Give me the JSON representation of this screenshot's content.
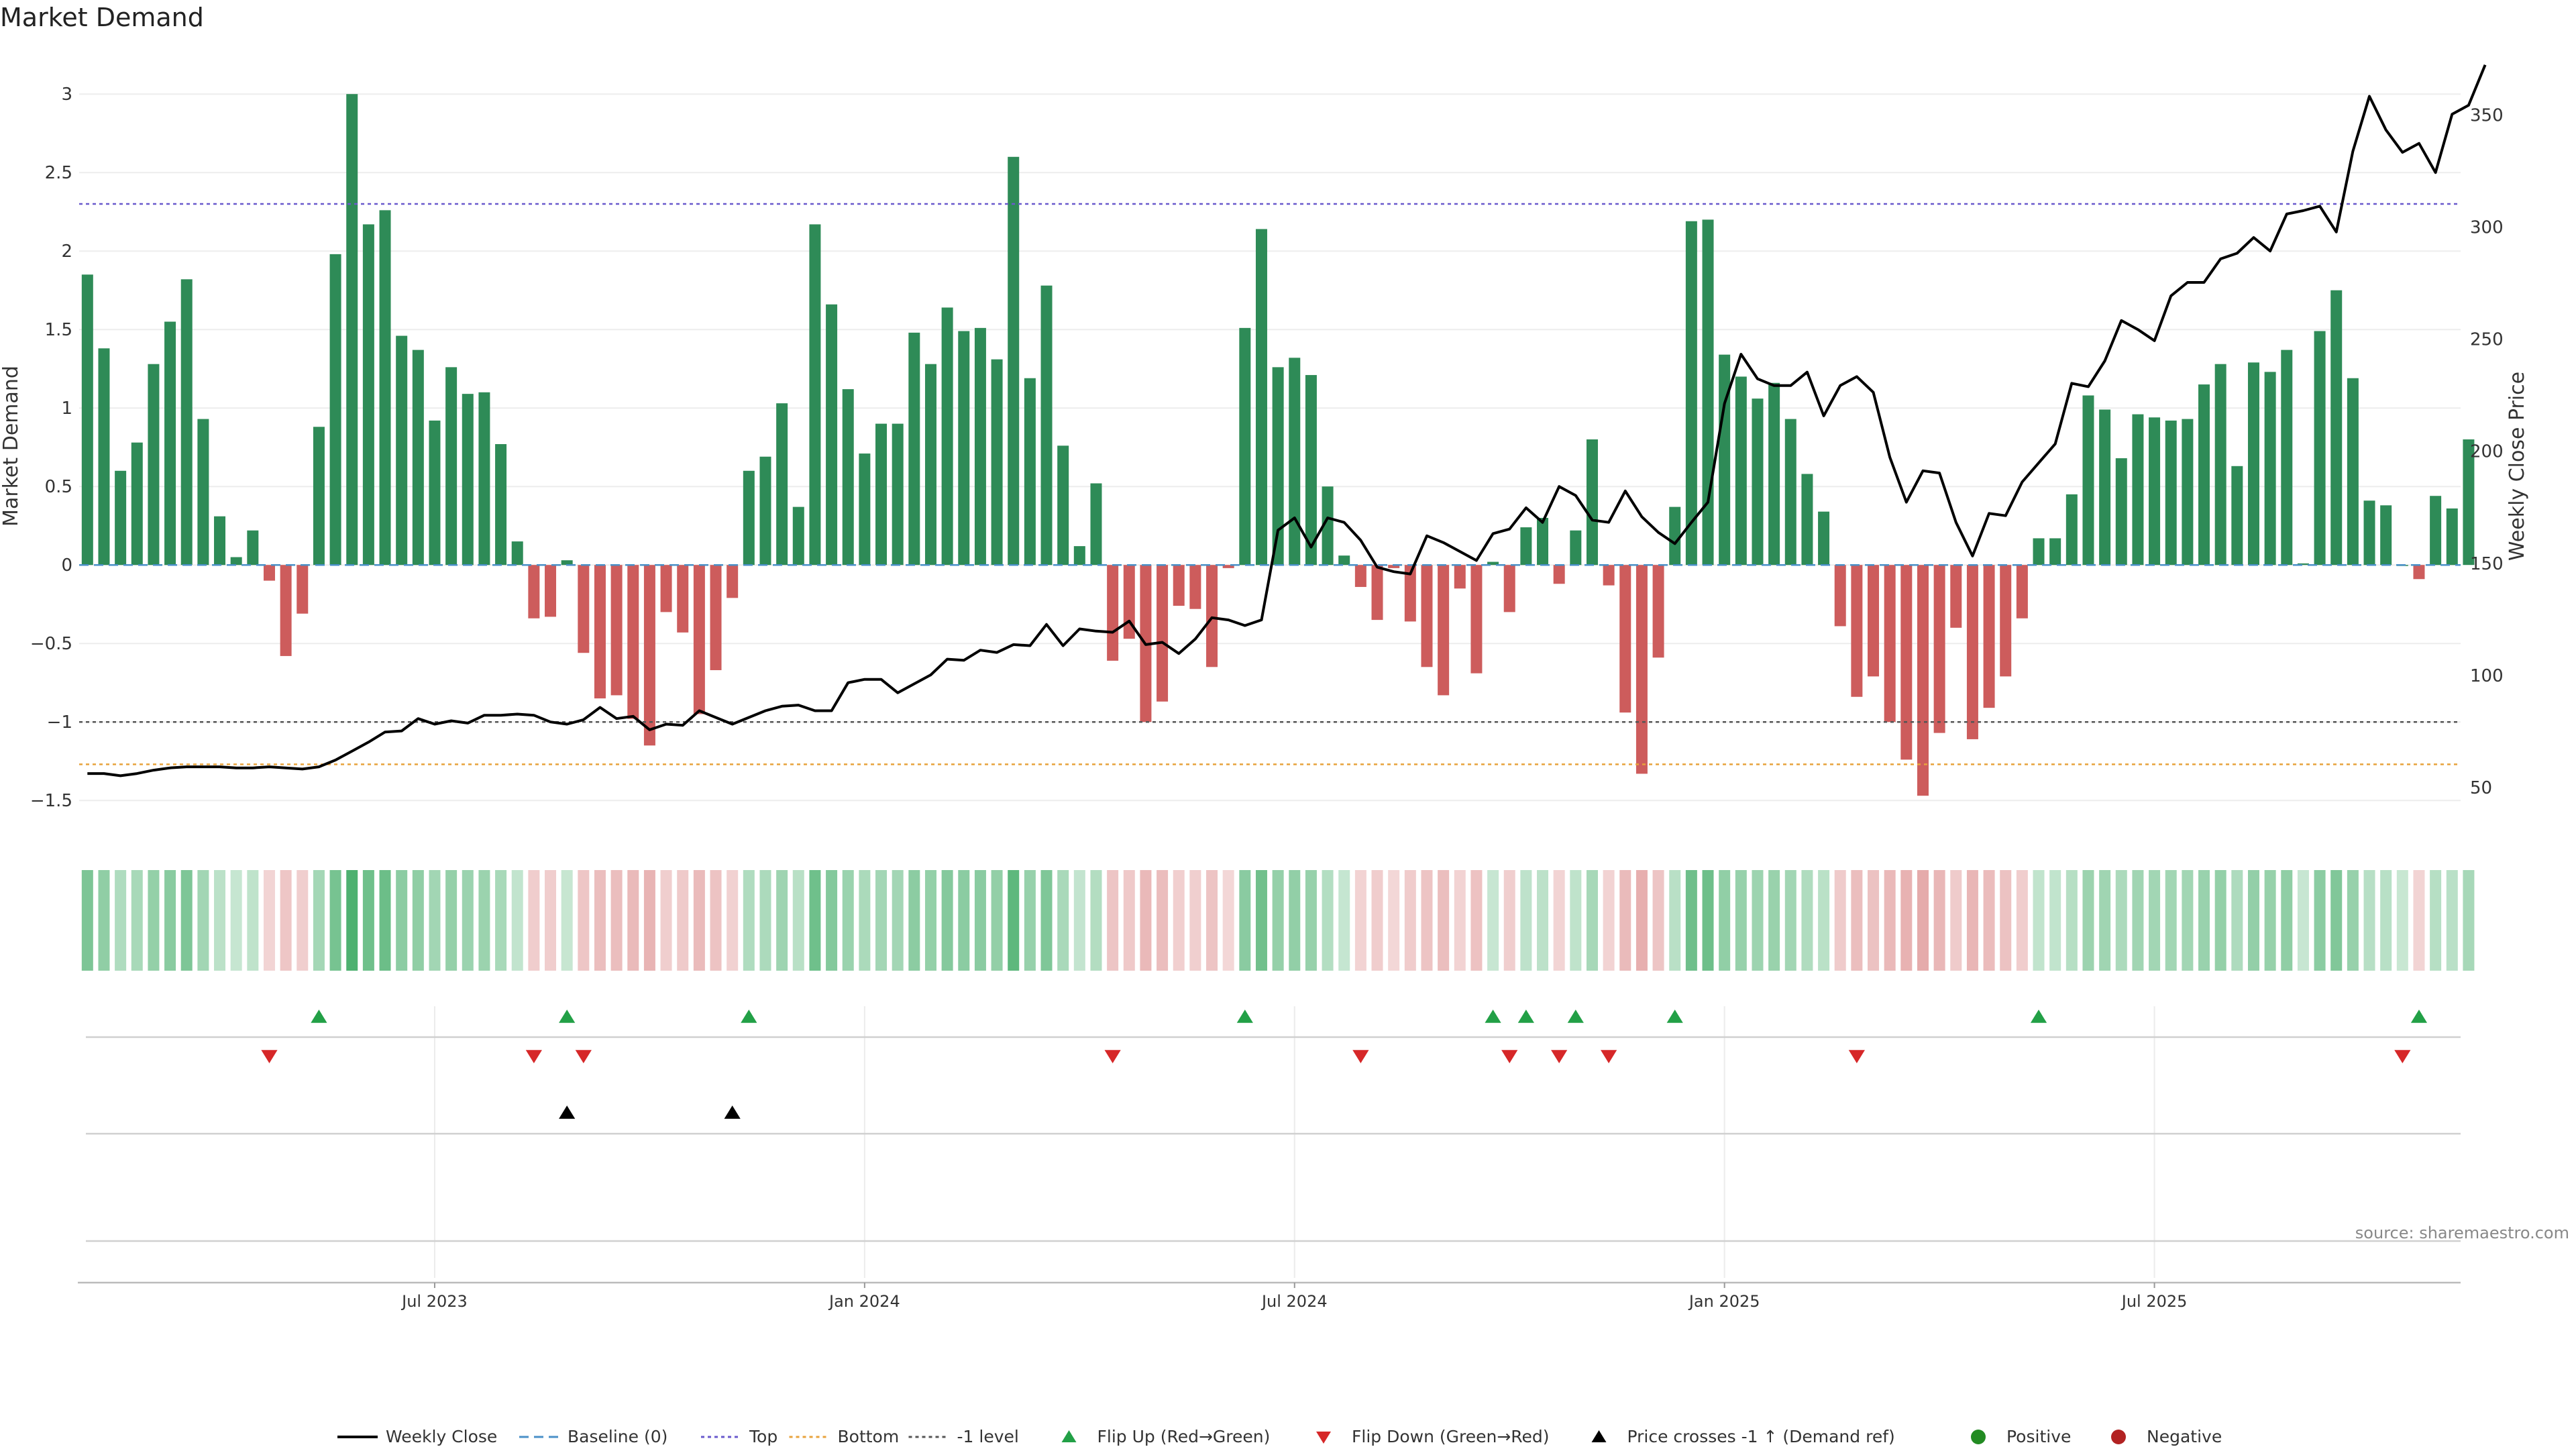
{
  "title": "Market Demand",
  "source": "source: sharemaestro.com",
  "chart_data": {
    "type": "bar",
    "weeks": 144,
    "ylabel_left": "Market Demand",
    "ylabel_right": "Weekly Close Price",
    "ylim_left": [
      -1.7,
      3.3
    ],
    "ylim_right": [
      30,
      380
    ],
    "left_ticks": [
      "3",
      "2.5",
      "2",
      "1.5",
      "1",
      "0.5",
      "0",
      "−0.5",
      "−1",
      "−1.5"
    ],
    "left_tick_values": [
      3,
      2.5,
      2,
      1.5,
      1,
      0.5,
      0,
      -0.5,
      -1,
      -1.5
    ],
    "right_ticks": [
      "350",
      "300",
      "250",
      "200",
      "150",
      "100",
      "50"
    ],
    "right_tick_values": [
      350,
      300,
      250,
      200,
      150,
      100,
      50
    ],
    "x_ticks": [
      "Jul 2023",
      "Jan 2024",
      "Jul 2024",
      "Jan 2025",
      "Jul 2025"
    ],
    "x_tick_weeks": [
      21.5,
      47.5,
      73.5,
      99.5,
      125.5
    ],
    "levels": {
      "top": 2.3,
      "bottom": -1.27,
      "minus_one": -1,
      "baseline": 0
    },
    "colors": {
      "positive": "#2e8b57",
      "negative": "#cd5c5c",
      "close": "#000000",
      "top": "#6a5acd",
      "bottom": "#e8a33d",
      "minus_one": "#555555",
      "baseline": "#4a90c8",
      "flip_up": "#22a046",
      "flip_down": "#d62728",
      "cross": "#000000"
    },
    "series": [
      {
        "name": "Market Demand",
        "values": [
          1.85,
          1.38,
          0.6,
          0.78,
          1.28,
          1.55,
          1.82,
          0.93,
          0.31,
          0.05,
          0.22,
          -0.1,
          -0.58,
          -0.31,
          0.88,
          1.98,
          3.0,
          2.17,
          2.26,
          1.46,
          1.37,
          0.92,
          1.26,
          1.09,
          1.1,
          0.77,
          0.15,
          -0.34,
          -0.33,
          0.03,
          -0.56,
          -0.85,
          -0.83,
          -0.98,
          -1.15,
          -0.3,
          -0.43,
          -0.95,
          -0.67,
          -0.21,
          0.6,
          0.69,
          1.03,
          0.37,
          2.17,
          1.66,
          1.12,
          0.71,
          0.9,
          0.9,
          1.48,
          1.28,
          1.64,
          1.49,
          1.51,
          1.31,
          2.6,
          1.19,
          1.78,
          0.76,
          0.12,
          0.52,
          -0.61,
          -0.47,
          -1.0,
          -0.87,
          -0.26,
          -0.28,
          -0.65,
          -0.02,
          1.51,
          2.14,
          1.26,
          1.32,
          1.21,
          0.5,
          0.06,
          -0.14,
          -0.35,
          -0.02,
          -0.36,
          -0.65,
          -0.83,
          -0.15,
          -0.69,
          0.02,
          -0.3,
          0.24,
          0.3,
          -0.12,
          0.22,
          0.8,
          -0.13,
          -0.94,
          -1.33,
          -0.59,
          0.37,
          2.19,
          2.2,
          1.34,
          1.2,
          1.06,
          1.16,
          0.93,
          0.58,
          0.34,
          -0.39,
          -0.84,
          -0.71,
          -1.0,
          -1.24,
          -1.47,
          -1.07,
          -0.4,
          -1.11,
          -0.91,
          -0.71,
          -0.34,
          0.17,
          0.17,
          0.45,
          1.08,
          0.99,
          0.68,
          0.96,
          0.94,
          0.92,
          0.93,
          1.15,
          1.28,
          0.63,
          1.29,
          1.23,
          1.37,
          0.01,
          1.49,
          1.75,
          1.19,
          0.41,
          0.38,
          0.0,
          -0.09,
          0.44,
          0.36,
          0.8
        ]
      },
      {
        "name": "Weekly Close",
        "values": [
          56,
          56,
          55,
          56,
          57.5,
          58.5,
          59,
          59,
          59,
          58.5,
          58.5,
          59,
          58.5,
          58,
          59,
          62,
          66,
          70,
          74.5,
          75,
          80.5,
          78,
          79.5,
          78.5,
          82,
          82,
          82.5,
          82,
          79,
          78,
          80,
          85.5,
          80.5,
          81.5,
          75.5,
          78,
          77.5,
          84,
          81,
          78,
          81,
          84,
          86,
          86.5,
          84,
          84,
          96.5,
          98,
          98,
          92,
          96,
          100,
          107,
          106.5,
          111,
          110,
          113.5,
          113,
          122.5,
          113,
          120.5,
          119.5,
          119,
          124,
          113.5,
          114.5,
          109.5,
          116,
          125.5,
          124.5,
          122,
          124.5,
          164.5,
          170,
          157,
          170,
          168,
          160,
          148,
          146,
          145,
          162,
          159,
          155,
          151,
          163,
          165,
          174.5,
          168,
          184,
          180,
          169,
          168,
          182,
          170.5,
          163.5,
          158.5,
          168,
          177,
          221,
          243,
          232,
          229,
          229,
          235,
          215.5,
          229,
          233,
          226,
          197,
          177,
          191,
          190,
          168,
          153,
          172,
          171,
          186,
          194.5,
          203,
          230,
          228.5,
          240,
          258,
          254,
          249,
          269,
          275,
          275,
          285.5,
          288,
          295,
          289,
          305.5,
          307,
          309,
          297.5,
          333.5,
          358,
          343,
          333,
          337,
          324,
          350,
          354,
          372
        ]
      }
    ],
    "flip_up_weeks": [
      14,
      29,
      40,
      70,
      85,
      87,
      90,
      96,
      118,
      141
    ],
    "flip_down_weeks": [
      11,
      27,
      30,
      62,
      77,
      86,
      89,
      92,
      107,
      140
    ],
    "cross_weeks": [
      29,
      39
    ]
  },
  "legend": [
    {
      "label": "Weekly Close",
      "kind": "line",
      "color": "#000000"
    },
    {
      "label": "Baseline (0)",
      "kind": "dash",
      "color": "#4a90c8"
    },
    {
      "label": "Top",
      "kind": "dot",
      "color": "#6a5acd"
    },
    {
      "label": "Bottom",
      "kind": "dot",
      "color": "#e8a33d"
    },
    {
      "label": "-1 level",
      "kind": "dot",
      "color": "#555555"
    },
    {
      "label": "Flip Up (Red→Green)",
      "kind": "tri-up",
      "color": "#22a046"
    },
    {
      "label": "Flip Down (Green→Red)",
      "kind": "tri-down",
      "color": "#d62728"
    },
    {
      "label": "Price crosses -1 ↑ (Demand ref)",
      "kind": "tri-up",
      "color": "#000000"
    },
    {
      "label": "Positive",
      "kind": "circle",
      "color": "#228b22"
    },
    {
      "label": "Negative",
      "kind": "circle",
      "color": "#b22222"
    }
  ]
}
